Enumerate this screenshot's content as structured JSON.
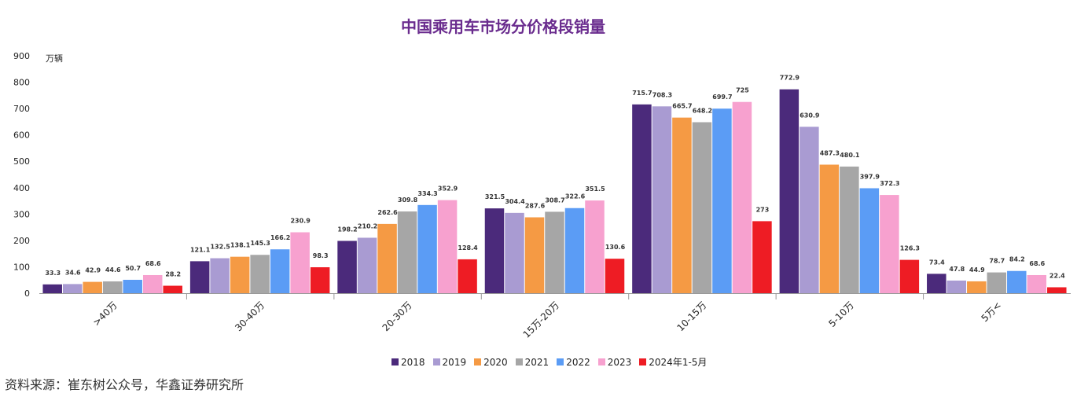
{
  "chart_data": {
    "type": "bar",
    "title": "中国乘用车市场分价格段销量",
    "unit_label": "万辆",
    "ylim": [
      0,
      900
    ],
    "yticks": [
      "0",
      "100",
      "200",
      "300",
      "400",
      "500",
      "600",
      "700",
      "800",
      "900"
    ],
    "categories": [
      ">40万",
      "30-40万",
      "20-30万",
      "15万-20万",
      "10-15万",
      "5-10万",
      "5万<"
    ],
    "series": [
      {
        "name": "2018",
        "color": "#4b2a7b",
        "values": [
          33.3,
          121.1,
          198.2,
          321.5,
          715.7,
          772.9,
          73.4
        ],
        "labels": [
          "33.3",
          "121.1",
          "198.2",
          "321.5",
          "715.7",
          "772.9",
          "73.4"
        ]
      },
      {
        "name": "2019",
        "color": "#a99bd2",
        "values": [
          34.6,
          132.5,
          210.2,
          304.4,
          708.3,
          630.9,
          47.8
        ],
        "labels": [
          "34.6",
          "132.5",
          "210.2",
          "304.4",
          "708.3",
          "630.9",
          "47.8"
        ]
      },
      {
        "name": "2020",
        "color": "#f59a44",
        "values": [
          42.9,
          138.1,
          262.6,
          287.6,
          665.7,
          487.3,
          44.9
        ],
        "labels": [
          "42.9",
          "138.1",
          "262.6",
          "287.6",
          "665.7",
          "487.3",
          "44.9"
        ]
      },
      {
        "name": "2021",
        "color": "#a6a6a6",
        "values": [
          44.6,
          145.3,
          309.8,
          308.7,
          648.2,
          480.1,
          78.7
        ],
        "labels": [
          "44.6",
          "145.3",
          "309.8",
          "308.7",
          "648.2",
          "480.1",
          "78.7"
        ]
      },
      {
        "name": "2022",
        "color": "#5b9cf5",
        "values": [
          50.7,
          166.2,
          334.3,
          322.6,
          699.7,
          397.9,
          84.2
        ],
        "labels": [
          "50.7",
          "166.2",
          "334.3",
          "322.6",
          "699.7",
          "397.9",
          "84.2"
        ]
      },
      {
        "name": "2023",
        "color": "#f7a1cf",
        "values": [
          68.6,
          230.9,
          352.9,
          351.5,
          725,
          372.3,
          68.6
        ],
        "labels": [
          "68.6",
          "230.9",
          "352.9",
          "351.5",
          "725",
          "372.3",
          "68.6"
        ]
      },
      {
        "name": "2024年1-5月",
        "color": "#ee1c24",
        "values": [
          28.2,
          98.3,
          128.4,
          130.6,
          273,
          126.3,
          22.4
        ],
        "labels": [
          "28.2",
          "98.3",
          "128.4",
          "130.6",
          "273",
          "126.3",
          "22.4"
        ]
      }
    ],
    "legend_position": "bottom",
    "grid": false
  },
  "source": "资料来源：崔东树公众号，华鑫证券研究所"
}
